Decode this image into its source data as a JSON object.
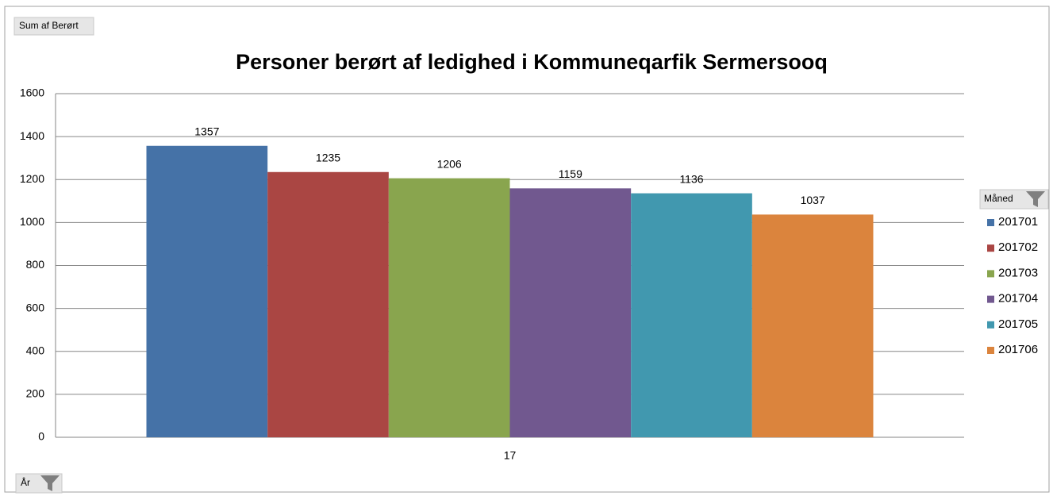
{
  "chart_data": {
    "type": "bar",
    "title": "Personer berørt af ledighed i Kommuneqarfik Sermersooq",
    "value_field": "Sum af Berørt",
    "legend_title": "Måned",
    "axis_field": "År",
    "categories": [
      "17"
    ],
    "series": [
      {
        "name": "201701",
        "color": "#4572a7",
        "values": [
          1357
        ]
      },
      {
        "name": "201702",
        "color": "#aa4643",
        "values": [
          1235
        ]
      },
      {
        "name": "201703",
        "color": "#89a54e",
        "values": [
          1206
        ]
      },
      {
        "name": "201704",
        "color": "#71588f",
        "values": [
          1159
        ]
      },
      {
        "name": "201705",
        "color": "#4198af",
        "values": [
          1136
        ]
      },
      {
        "name": "201706",
        "color": "#db843d",
        "values": [
          1037
        ]
      }
    ],
    "ylim": [
      0,
      1600
    ],
    "yticks": [
      0,
      200,
      400,
      600,
      800,
      1000,
      1200,
      1400,
      1600
    ],
    "grid": true,
    "legend": "right"
  }
}
